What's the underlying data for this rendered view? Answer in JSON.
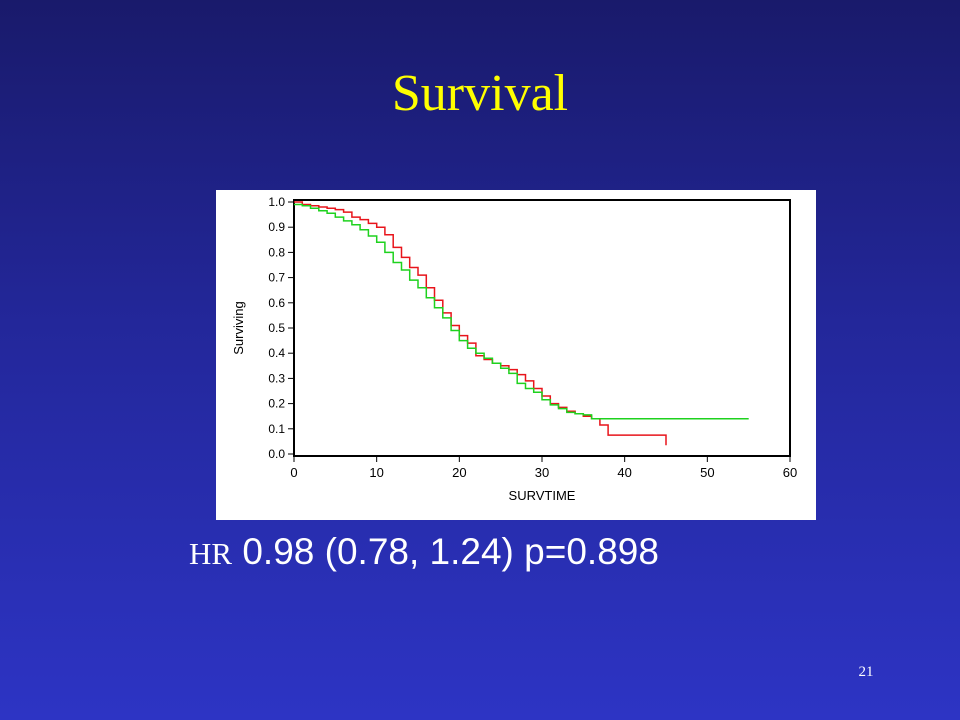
{
  "slide": {
    "title": "Survival",
    "hr_label": "HR",
    "hr_stats": "0.98 (0.78, 1.24) p=0.898",
    "slide_number": "21"
  },
  "colors": {
    "title": "#ffff00",
    "background_top": "#191a6b",
    "background_bottom": "#2d34c4",
    "series_red": "#e8141b",
    "series_green": "#1ed21e"
  },
  "chart_data": {
    "type": "line",
    "subtype": "kaplan-meier step",
    "xlabel": "SURVTIME",
    "ylabel": "Surviving",
    "xlim": [
      0,
      60
    ],
    "ylim": [
      0,
      1.0
    ],
    "x_ticks": [
      "0",
      "10",
      "20",
      "30",
      "40",
      "50",
      "60"
    ],
    "y_ticks": [
      "0.0",
      "0.1",
      "0.2",
      "0.3",
      "0.4",
      "0.5",
      "0.6",
      "0.7",
      "0.8",
      "0.9",
      "1.0"
    ],
    "grid": false,
    "series": [
      {
        "color": "#e8141b",
        "points": [
          [
            0,
            1.0
          ],
          [
            1,
            0.99
          ],
          [
            2,
            0.985
          ],
          [
            3,
            0.98
          ],
          [
            4,
            0.975
          ],
          [
            5,
            0.97
          ],
          [
            6,
            0.96
          ],
          [
            7,
            0.94
          ],
          [
            8,
            0.93
          ],
          [
            9,
            0.915
          ],
          [
            10,
            0.9
          ],
          [
            11,
            0.87
          ],
          [
            12,
            0.82
          ],
          [
            13,
            0.78
          ],
          [
            14,
            0.74
          ],
          [
            15,
            0.71
          ],
          [
            16,
            0.66
          ],
          [
            17,
            0.61
          ],
          [
            18,
            0.56
          ],
          [
            19,
            0.51
          ],
          [
            20,
            0.47
          ],
          [
            21,
            0.44
          ],
          [
            22,
            0.39
          ],
          [
            23,
            0.375
          ],
          [
            24,
            0.36
          ],
          [
            25,
            0.35
          ],
          [
            26,
            0.335
          ],
          [
            27,
            0.315
          ],
          [
            28,
            0.29
          ],
          [
            29,
            0.26
          ],
          [
            30,
            0.23
          ],
          [
            31,
            0.2
          ],
          [
            32,
            0.185
          ],
          [
            33,
            0.17
          ],
          [
            34,
            0.16
          ],
          [
            35,
            0.15
          ],
          [
            36,
            0.14
          ],
          [
            37,
            0.115
          ],
          [
            38,
            0.075
          ],
          [
            45,
            0.075
          ],
          [
            45,
            0.035
          ]
        ]
      },
      {
        "color": "#1ed21e",
        "points": [
          [
            0,
            0.99
          ],
          [
            1,
            0.985
          ],
          [
            2,
            0.975
          ],
          [
            3,
            0.965
          ],
          [
            4,
            0.955
          ],
          [
            5,
            0.94
          ],
          [
            6,
            0.925
          ],
          [
            7,
            0.91
          ],
          [
            8,
            0.89
          ],
          [
            9,
            0.865
          ],
          [
            10,
            0.84
          ],
          [
            11,
            0.8
          ],
          [
            12,
            0.76
          ],
          [
            13,
            0.73
          ],
          [
            14,
            0.69
          ],
          [
            15,
            0.66
          ],
          [
            16,
            0.62
          ],
          [
            17,
            0.58
          ],
          [
            18,
            0.54
          ],
          [
            19,
            0.49
          ],
          [
            20,
            0.45
          ],
          [
            21,
            0.42
          ],
          [
            22,
            0.4
          ],
          [
            23,
            0.38
          ],
          [
            24,
            0.36
          ],
          [
            25,
            0.34
          ],
          [
            26,
            0.32
          ],
          [
            27,
            0.28
          ],
          [
            28,
            0.26
          ],
          [
            29,
            0.245
          ],
          [
            30,
            0.215
          ],
          [
            31,
            0.195
          ],
          [
            32,
            0.18
          ],
          [
            33,
            0.165
          ],
          [
            34,
            0.16
          ],
          [
            35,
            0.155
          ],
          [
            36,
            0.14
          ],
          [
            55,
            0.14
          ]
        ]
      }
    ]
  }
}
